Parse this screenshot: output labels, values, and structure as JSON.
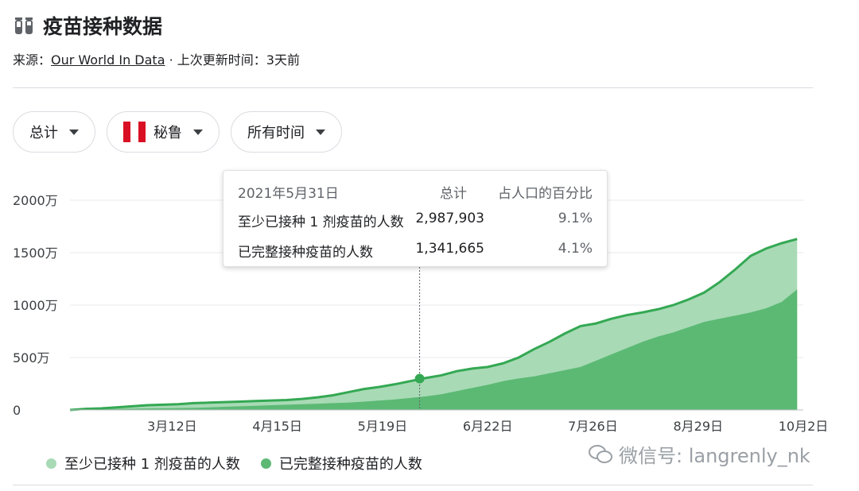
{
  "header": {
    "title": "疫苗接种数据",
    "icon": "vaccine-vial-icon"
  },
  "source": {
    "prefix": "来源：",
    "link": "Our World In Data",
    "suffix": " · 上次更新时间：3天前"
  },
  "filters": {
    "metric": "总计",
    "country": "秘鲁",
    "country_flag_colors": [
      "#d91023",
      "#ffffff",
      "#d91023"
    ],
    "time_range": "所有时间"
  },
  "tooltip": {
    "date": "2021年5月31日",
    "col_total": "总计",
    "col_percent": "占人口的百分比",
    "rows": [
      {
        "label": "至少已接种 1 剂疫苗的人数",
        "total": "2,987,903",
        "percent": "9.1%"
      },
      {
        "label": "已完整接种疫苗的人数",
        "total": "1,341,665",
        "percent": "4.1%"
      }
    ]
  },
  "watermark": {
    "text": "微信号: langrenly_nk",
    "icon": "wechat-icon"
  },
  "chart_data": {
    "type": "area",
    "x_tick_labels": [
      "3月12日",
      "4月15日",
      "5月19日",
      "6月22日",
      "7月26日",
      "8月29日",
      "10月2日"
    ],
    "y_tick_labels": [
      "0",
      "500万",
      "1000万",
      "1500万",
      "2000万"
    ],
    "ylim": [
      0,
      20000000
    ],
    "grid": true,
    "legend_position": "bottom",
    "x_days": [
      0,
      5,
      10,
      15,
      20,
      25,
      30,
      35,
      40,
      45,
      50,
      55,
      60,
      65,
      70,
      75,
      80,
      85,
      90,
      95,
      100,
      105,
      110,
      115,
      120,
      125,
      130,
      135,
      140,
      145,
      150,
      155,
      160,
      165,
      170,
      175,
      180,
      185,
      190,
      195,
      200,
      205,
      210,
      215,
      220,
      225,
      230,
      235
    ],
    "date_labels_offset_days": {
      "3月12日": 33,
      "4月15日": 67,
      "5月19日": 101,
      "6月22日": 135,
      "7月26日": 169,
      "8月29日": 203,
      "10月2日": 237
    },
    "highlight": {
      "day": 113,
      "value": 2987903
    },
    "series": [
      {
        "name": "至少已接种 1 剂疫苗的人数",
        "color": "#34a853",
        "fill": "#a8dab5",
        "values": [
          0,
          100000,
          150000,
          250000,
          350000,
          450000,
          500000,
          550000,
          650000,
          700000,
          750000,
          800000,
          850000,
          900000,
          950000,
          1050000,
          1200000,
          1400000,
          1700000,
          2000000,
          2200000,
          2450000,
          2750000,
          3050000,
          3300000,
          3700000,
          3950000,
          4100000,
          4450000,
          5000000,
          5800000,
          6500000,
          7300000,
          8000000,
          8250000,
          8700000,
          9050000,
          9300000,
          9600000,
          10000000,
          10550000,
          11200000,
          12200000,
          13400000,
          14700000,
          15400000,
          15900000,
          16300000
        ]
      },
      {
        "name": "已完整接种疫苗的人数",
        "color": "#34a853",
        "fill": "#5bb974",
        "values": [
          0,
          50000,
          80000,
          100000,
          120000,
          140000,
          160000,
          180000,
          200000,
          250000,
          300000,
          350000,
          400000,
          450000,
          500000,
          550000,
          600000,
          650000,
          700000,
          800000,
          900000,
          1000000,
          1150000,
          1300000,
          1500000,
          1800000,
          2100000,
          2400000,
          2750000,
          3000000,
          3200000,
          3500000,
          3800000,
          4100000,
          4700000,
          5300000,
          5900000,
          6500000,
          7000000,
          7400000,
          7900000,
          8400000,
          8700000,
          9000000,
          9300000,
          9700000,
          10300000,
          11500000
        ]
      }
    ]
  }
}
